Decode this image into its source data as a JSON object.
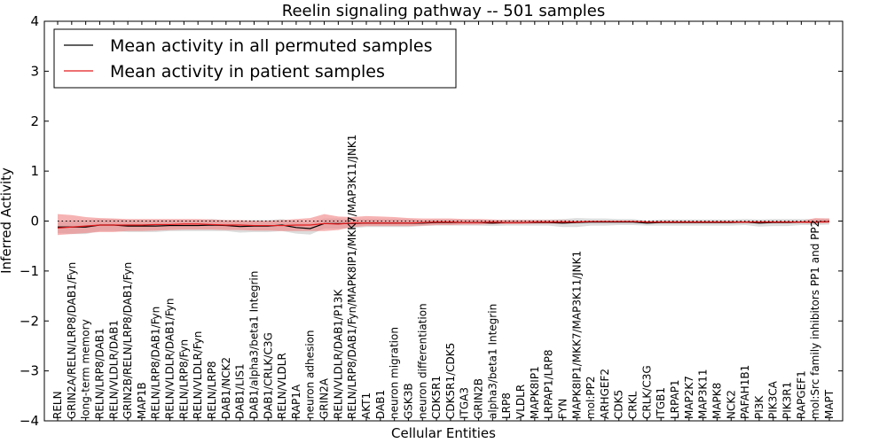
{
  "chart_data": {
    "type": "line",
    "title": "Reelin signaling pathway -- 501 samples",
    "xlabel": "Cellular Entities",
    "ylabel": "Inferred Activity",
    "ylim": [
      -4,
      4
    ],
    "yticks": [
      -4,
      -3,
      -2,
      -1,
      0,
      1,
      2,
      3,
      4
    ],
    "ytick_labels": [
      "−4",
      "−3",
      "−2",
      "−1",
      "0",
      "1",
      "2",
      "3",
      "4"
    ],
    "legend_position": "top-left",
    "categories": [
      "RELN",
      "GRIN2A/RELN/LRP8/DAB1/Fyn",
      "long-term memory",
      "RELN/LRP8/DAB1",
      "RELN/VLDLR/DAB1",
      "GRIN2B/RELN/LRP8/DAB1/Fyn",
      "MAP1B",
      "RELN/LRP8/DAB1/Fyn",
      "RELN/VLDLR/DAB1/Fyn",
      "RELN/LRP8/Fyn",
      "RELN/VLDLR/Fyn",
      "RELN/LRP8",
      "DAB1/NCK2",
      "DAB1/LIS1",
      "DAB1/alpha3/beta1 Integrin",
      "DAB1/CRLK/C3G",
      "RELN/VLDLR",
      "RAP1A",
      "neuron adhesion",
      "GRIN2A",
      "RELN/VLDLR/DAB1/P13K",
      "RELN/LRP8/DAB1/Fyn/MAPK8IP1/MKK7/MAP3K11/JNK1",
      "AKT1",
      "DAB1",
      "neuron migration",
      "GSK3B",
      "neuron differentiation",
      "CDK5R1",
      "CDK5R1/CDK5",
      "ITGA3",
      "GRIN2B",
      "alpha3/beta1 Integrin",
      "LRP8",
      "VLDLR",
      "MAPK8IP1",
      "LRPAP1/LRP8",
      "FYN",
      "MAPK8IP1/MKK7/MAP3K11/JNK1",
      "mol:PP2",
      "ARHGEF2",
      "CDK5",
      "CRKL",
      "CRLK/C3G",
      "ITGB1",
      "LRPAP1",
      "MAP2K7",
      "MAP3K11",
      "MAPK8",
      "NCK2",
      "PAFAH1B1",
      "PI3K",
      "PIK3CA",
      "PIK3R1",
      "RAPGEF1",
      "mol:Src family inhibitors PP1 and PP2",
      "MAPT"
    ],
    "series": [
      {
        "name": "Mean activity in all permuted samples",
        "color": "#000000",
        "values": [
          -0.12,
          -0.12,
          -0.12,
          -0.08,
          -0.08,
          -0.1,
          -0.1,
          -0.1,
          -0.09,
          -0.09,
          -0.09,
          -0.08,
          -0.09,
          -0.11,
          -0.1,
          -0.1,
          -0.08,
          -0.13,
          -0.15,
          -0.05,
          -0.05,
          -0.05,
          -0.04,
          -0.04,
          -0.04,
          -0.04,
          -0.04,
          -0.03,
          -0.03,
          -0.03,
          -0.03,
          -0.04,
          -0.03,
          -0.03,
          -0.03,
          -0.03,
          -0.04,
          -0.03,
          -0.02,
          -0.02,
          -0.02,
          -0.02,
          -0.04,
          -0.03,
          -0.03,
          -0.03,
          -0.03,
          -0.03,
          -0.03,
          -0.02,
          -0.04,
          -0.03,
          -0.03,
          -0.02,
          -0.02,
          -0.01
        ],
        "band_low": [
          -0.24,
          -0.26,
          -0.26,
          -0.2,
          -0.2,
          -0.22,
          -0.22,
          -0.22,
          -0.2,
          -0.2,
          -0.2,
          -0.2,
          -0.2,
          -0.23,
          -0.22,
          -0.22,
          -0.2,
          -0.25,
          -0.27,
          -0.15,
          -0.15,
          -0.14,
          -0.12,
          -0.12,
          -0.12,
          -0.12,
          -0.1,
          -0.09,
          -0.09,
          -0.09,
          -0.09,
          -0.1,
          -0.09,
          -0.09,
          -0.09,
          -0.09,
          -0.12,
          -0.12,
          -0.09,
          -0.09,
          -0.08,
          -0.08,
          -0.09,
          -0.09,
          -0.09,
          -0.09,
          -0.09,
          -0.09,
          -0.09,
          -0.08,
          -0.11,
          -0.1,
          -0.1,
          -0.08,
          -0.08,
          -0.07
        ],
        "band_high": [
          0.0,
          0.02,
          0.02,
          0.04,
          0.04,
          0.02,
          0.02,
          0.02,
          0.02,
          0.02,
          0.02,
          0.04,
          0.02,
          0.01,
          0.02,
          0.02,
          0.04,
          -0.01,
          -0.03,
          0.05,
          0.05,
          0.04,
          0.04,
          0.04,
          0.04,
          0.04,
          0.02,
          0.03,
          0.03,
          0.03,
          0.03,
          0.02,
          0.03,
          0.03,
          0.03,
          0.03,
          0.04,
          0.06,
          0.05,
          0.05,
          0.04,
          0.04,
          0.01,
          0.03,
          0.03,
          0.03,
          0.03,
          0.03,
          0.03,
          0.04,
          0.03,
          0.04,
          0.04,
          0.04,
          0.04,
          0.05
        ]
      },
      {
        "name": "Mean activity in patient samples",
        "color": "#e31a1c",
        "values": [
          -0.14,
          -0.12,
          -0.1,
          -0.08,
          -0.08,
          -0.08,
          -0.08,
          -0.07,
          -0.07,
          -0.06,
          -0.06,
          -0.07,
          -0.08,
          -0.08,
          -0.09,
          -0.09,
          -0.09,
          -0.08,
          -0.08,
          -0.05,
          -0.06,
          -0.04,
          -0.04,
          -0.04,
          -0.04,
          -0.04,
          -0.03,
          -0.02,
          -0.02,
          -0.03,
          -0.03,
          -0.02,
          -0.03,
          -0.03,
          -0.02,
          -0.02,
          -0.02,
          -0.02,
          -0.01,
          -0.01,
          -0.01,
          -0.01,
          -0.02,
          -0.02,
          -0.02,
          -0.02,
          -0.02,
          -0.02,
          -0.02,
          -0.02,
          -0.02,
          -0.02,
          -0.02,
          -0.02,
          -0.02,
          -0.01
        ],
        "band_low": [
          -0.28,
          -0.26,
          -0.24,
          -0.22,
          -0.22,
          -0.2,
          -0.2,
          -0.19,
          -0.18,
          -0.17,
          -0.17,
          -0.17,
          -0.18,
          -0.18,
          -0.19,
          -0.19,
          -0.2,
          -0.2,
          -0.2,
          -0.2,
          -0.18,
          -0.12,
          -0.1,
          -0.1,
          -0.1,
          -0.1,
          -0.09,
          -0.08,
          -0.08,
          -0.07,
          -0.07,
          -0.06,
          -0.06,
          -0.06,
          -0.05,
          -0.05,
          -0.05,
          -0.04,
          -0.03,
          -0.03,
          -0.03,
          -0.03,
          -0.04,
          -0.04,
          -0.04,
          -0.04,
          -0.04,
          -0.04,
          -0.04,
          -0.04,
          -0.04,
          -0.04,
          -0.04,
          -0.04,
          -0.05,
          -0.04
        ],
        "band_high": [
          0.14,
          0.12,
          0.08,
          0.06,
          0.05,
          0.04,
          0.04,
          0.04,
          0.04,
          0.04,
          0.04,
          0.03,
          0.02,
          0.02,
          0.01,
          0.01,
          0.02,
          0.04,
          0.06,
          0.14,
          0.09,
          0.08,
          0.1,
          0.09,
          0.08,
          0.06,
          0.05,
          0.05,
          0.05,
          0.04,
          0.04,
          0.03,
          0.02,
          0.02,
          0.02,
          0.02,
          0.02,
          0.01,
          0.01,
          0.01,
          0.01,
          0.01,
          0.0,
          0.0,
          0.0,
          0.0,
          0.0,
          0.0,
          0.0,
          0.0,
          0.0,
          0.0,
          0.0,
          0.0,
          0.06,
          0.05
        ]
      }
    ],
    "reference_line": {
      "value": 0,
      "style": "dotted"
    }
  }
}
